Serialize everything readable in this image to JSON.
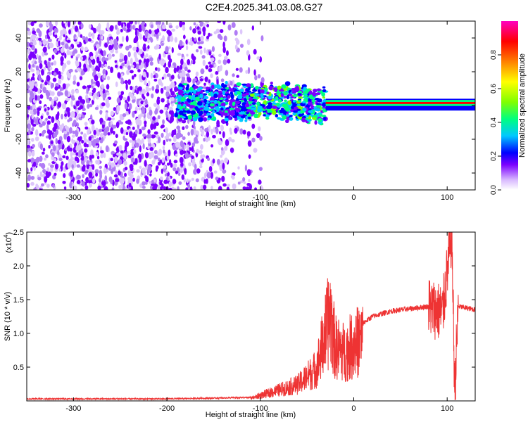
{
  "title": "C2E4.2025.341.03.08.G27",
  "chart_data": [
    {
      "type": "heatmap",
      "name": "spectrogram",
      "xlabel": "Height of straight line (km)",
      "ylabel": "Frequency (Hz)",
      "xlim": [
        -350,
        130
      ],
      "ylim": [
        -50,
        50
      ],
      "xticks": [
        -300,
        -200,
        -100,
        0,
        100
      ],
      "yticks": [
        -40,
        -20,
        0,
        20,
        40
      ],
      "colorbar": {
        "label": "Normalized spectral amplitude",
        "range": [
          0,
          1
        ],
        "ticks": [
          "0.0",
          "0.2",
          "0.4",
          "0.6",
          "0.8"
        ],
        "colormap": [
          "#ffffff",
          "#c9a6f5",
          "#7b00ff",
          "#0000ff",
          "#00c8ff",
          "#00ff80",
          "#80ff00",
          "#ffff00",
          "#ff8000",
          "#ff0000",
          "#ff00c0"
        ]
      },
      "regions": [
        {
          "x_range": [
            -350,
            -110
          ],
          "y_range": [
            -50,
            50
          ],
          "amplitude": 0.1,
          "description_pattern": "noise"
        },
        {
          "x_range": [
            -190,
            -30
          ],
          "y_range": [
            -12,
            12
          ],
          "amplitude": 0.35,
          "center_freq": 0
        },
        {
          "x_range": [
            -30,
            130
          ],
          "y_range": [
            -3,
            4
          ],
          "amplitude": 0.95,
          "center_freq": 1.5
        }
      ],
      "line": {
        "frequency": 1.5,
        "x_range": [
          -30,
          130
        ]
      }
    },
    {
      "type": "line",
      "name": "snr",
      "xlabel": "Height of straight line (km)",
      "ylabel": "SNR (10 * v/v)",
      "y_multiplier_label": "(x10",
      "y_multiplier_exp": "4",
      "y_multiplier_close": ")",
      "xlim": [
        -350,
        130
      ],
      "ylim": [
        0,
        2.5
      ],
      "xticks": [
        -300,
        -200,
        -100,
        0,
        100
      ],
      "yticks": [
        "0.5",
        "1.0",
        "1.5",
        "2.0",
        "2.5"
      ],
      "color": "#ee3333",
      "key_points": [
        {
          "x": -350,
          "y": 0.03
        },
        {
          "x": -200,
          "y": 0.03
        },
        {
          "x": -110,
          "y": 0.05
        },
        {
          "x": -90,
          "y": 0.15
        },
        {
          "x": -60,
          "y": 0.3
        },
        {
          "x": -40,
          "y": 0.6
        },
        {
          "x": -25,
          "y": 1.6
        },
        {
          "x": -20,
          "y": 1.0
        },
        {
          "x": -10,
          "y": 0.9
        },
        {
          "x": 0,
          "y": 1.05
        },
        {
          "x": 20,
          "y": 1.25
        },
        {
          "x": 40,
          "y": 1.33
        },
        {
          "x": 80,
          "y": 1.4
        },
        {
          "x": 95,
          "y": 1.3
        },
        {
          "x": 105,
          "y": 2.5
        },
        {
          "x": 108,
          "y": 0.15
        },
        {
          "x": 112,
          "y": 1.4
        },
        {
          "x": 130,
          "y": 1.35
        }
      ]
    }
  ]
}
